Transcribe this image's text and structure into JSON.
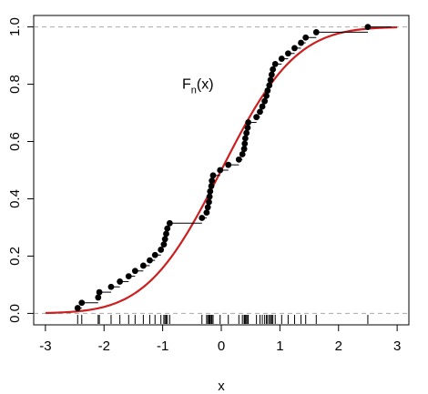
{
  "chart_data": {
    "type": "line",
    "title": "",
    "xlabel": "x",
    "ylabel": "",
    "annotation": {
      "text": "F",
      "subscript": "n",
      "suffix": "(x)",
      "x": -0.4,
      "y": 0.8
    },
    "xlim": [
      -3.2,
      3.2
    ],
    "ylim": [
      -0.04,
      1.04
    ],
    "xticks": [
      -3,
      -2,
      -1,
      0,
      1,
      2,
      3
    ],
    "yticks": [
      0.0,
      0.2,
      0.4,
      0.6,
      0.8,
      1.0
    ],
    "xtick_labels": [
      "-3",
      "-2",
      "-1",
      "0",
      "1",
      "2",
      "3"
    ],
    "ytick_labels": [
      "0.0",
      "0.2",
      "0.4",
      "0.6",
      "0.8",
      "1.0"
    ],
    "reference_lines_y": [
      0.0,
      1.0
    ],
    "series": [
      {
        "kind": "ecdf",
        "color": "#000000",
        "sample": [
          -2.45,
          -2.38,
          -2.1,
          -2.08,
          -1.88,
          -1.73,
          -1.58,
          -1.47,
          -1.33,
          -1.22,
          -1.13,
          -1.03,
          -0.98,
          -0.96,
          -0.94,
          -0.92,
          -0.88,
          -0.33,
          -0.25,
          -0.23,
          -0.21,
          -0.2,
          -0.19,
          -0.17,
          -0.16,
          -0.14,
          -0.02,
          0.12,
          0.3,
          0.36,
          0.39,
          0.4,
          0.41,
          0.43,
          0.45,
          0.46,
          0.6,
          0.66,
          0.7,
          0.74,
          0.77,
          0.79,
          0.82,
          0.84,
          0.86,
          0.88,
          0.92,
          1.03,
          1.14,
          1.25,
          1.36,
          1.44,
          1.62,
          2.5
        ]
      },
      {
        "kind": "normal_cdf",
        "color": "#cc1f1f",
        "mean": 0,
        "sd": 1,
        "x_range": [
          -3.0,
          3.0
        ]
      }
    ],
    "rug": true,
    "grid": false,
    "legend": "none"
  }
}
